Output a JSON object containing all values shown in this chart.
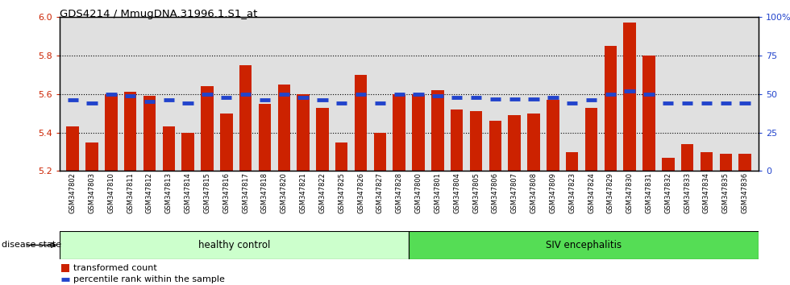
{
  "title": "GDS4214 / MmugDNA.31996.1.S1_at",
  "samples": [
    "GSM347802",
    "GSM347803",
    "GSM347810",
    "GSM347811",
    "GSM347812",
    "GSM347813",
    "GSM347814",
    "GSM347815",
    "GSM347816",
    "GSM347817",
    "GSM347818",
    "GSM347820",
    "GSM347821",
    "GSM347822",
    "GSM347825",
    "GSM347826",
    "GSM347827",
    "GSM347828",
    "GSM347800",
    "GSM347801",
    "GSM347804",
    "GSM347805",
    "GSM347806",
    "GSM347807",
    "GSM347808",
    "GSM347809",
    "GSM347823",
    "GSM347824",
    "GSM347829",
    "GSM347830",
    "GSM347831",
    "GSM347832",
    "GSM347833",
    "GSM347834",
    "GSM347835",
    "GSM347836"
  ],
  "bar_values": [
    5.43,
    5.35,
    5.6,
    5.61,
    5.59,
    5.43,
    5.4,
    5.64,
    5.5,
    5.75,
    5.55,
    5.65,
    5.6,
    5.53,
    5.35,
    5.7,
    5.4,
    5.6,
    5.6,
    5.62,
    5.52,
    5.51,
    5.46,
    5.49,
    5.5,
    5.57,
    5.3,
    5.53,
    5.85,
    5.97,
    5.8,
    5.27,
    5.34,
    5.3,
    5.29,
    5.29
  ],
  "percentile_values": [
    46,
    44,
    50,
    49,
    45,
    46,
    44,
    50,
    48,
    50,
    46,
    50,
    48,
    46,
    44,
    50,
    44,
    50,
    50,
    49,
    48,
    48,
    47,
    47,
    47,
    48,
    44,
    46,
    50,
    52,
    50,
    44,
    44,
    44,
    44,
    44
  ],
  "healthy_control_count": 18,
  "siv_count": 18,
  "ylim_left": [
    5.2,
    6.0
  ],
  "ylim_right": [
    0,
    100
  ],
  "yticks_left": [
    5.2,
    5.4,
    5.6,
    5.8,
    6.0
  ],
  "yticks_right": [
    0,
    25,
    50,
    75,
    100
  ],
  "ytick_labels_right": [
    "0",
    "25",
    "50",
    "75",
    "100%"
  ],
  "bar_color": "#cc2200",
  "percentile_color": "#2244cc",
  "healthy_fill": "#ccffcc",
  "siv_fill": "#55dd55",
  "background_color": "#e0e0e0",
  "label_transformed": "transformed count",
  "label_percentile": "percentile rank within the sample",
  "label_disease": "disease state",
  "label_healthy": "healthy control",
  "label_siv": "SIV encephalitis"
}
